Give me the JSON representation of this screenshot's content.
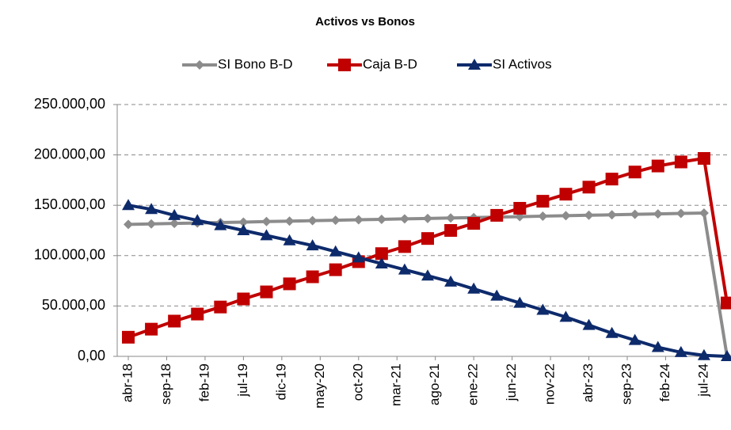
{
  "chart_data": {
    "type": "line",
    "title": "Activos vs Bonos",
    "x": [
      "2018-04",
      "2018-07",
      "2018-10",
      "2019-01",
      "2019-04",
      "2019-07",
      "2019-10",
      "2020-01",
      "2020-04",
      "2020-07",
      "2020-10",
      "2021-01",
      "2021-04",
      "2021-07",
      "2021-10",
      "2022-01",
      "2022-04",
      "2022-07",
      "2022-10",
      "2023-01",
      "2023-04",
      "2023-07",
      "2023-10",
      "2024-01",
      "2024-04",
      "2024-07",
      "2024-10"
    ],
    "xlim": [
      "2018-04",
      "2024-10"
    ],
    "xticks": [
      {
        "value": "2018-04",
        "label": "abr-18"
      },
      {
        "value": "2018-09",
        "label": "sep-18"
      },
      {
        "value": "2019-02",
        "label": "feb-19"
      },
      {
        "value": "2019-07",
        "label": "jul-19"
      },
      {
        "value": "2019-12",
        "label": "dic-19"
      },
      {
        "value": "2020-05",
        "label": "may-20"
      },
      {
        "value": "2020-10",
        "label": "oct-20"
      },
      {
        "value": "2021-03",
        "label": "mar-21"
      },
      {
        "value": "2021-08",
        "label": "ago-21"
      },
      {
        "value": "2022-01",
        "label": "ene-22"
      },
      {
        "value": "2022-06",
        "label": "jun-22"
      },
      {
        "value": "2022-11",
        "label": "nov-22"
      },
      {
        "value": "2023-04",
        "label": "abr-23"
      },
      {
        "value": "2023-09",
        "label": "sep-23"
      },
      {
        "value": "2024-02",
        "label": "feb-24"
      },
      {
        "value": "2024-07",
        "label": "jul-24"
      }
    ],
    "ylim": [
      0,
      250000
    ],
    "yticks": [
      {
        "value": 0,
        "label": "0,00"
      },
      {
        "value": 50000,
        "label": "50.000,00"
      },
      {
        "value": 100000,
        "label": "100.000,00"
      },
      {
        "value": 150000,
        "label": "150.000,00"
      },
      {
        "value": 200000,
        "label": "200.000,00"
      },
      {
        "value": 250000,
        "label": "250.000,00"
      }
    ],
    "grid": true,
    "legend": "top",
    "series": [
      {
        "name": "SI Bono B-D",
        "color": "#8c8c8c",
        "marker": "diamond",
        "values": [
          131000,
          131500,
          132000,
          132400,
          132900,
          133300,
          133800,
          134200,
          134700,
          135100,
          135600,
          136000,
          136500,
          136900,
          137400,
          137800,
          138300,
          138700,
          139200,
          139600,
          140100,
          140500,
          141000,
          141400,
          141900,
          142300,
          0
        ]
      },
      {
        "name": "Caja B-D",
        "color": "#c00000",
        "marker": "square",
        "values": [
          19000,
          27000,
          35000,
          42000,
          49000,
          57000,
          64000,
          72000,
          79000,
          86000,
          94000,
          102000,
          109000,
          117000,
          125000,
          132000,
          140000,
          147000,
          154000,
          161000,
          168000,
          176000,
          183000,
          189000,
          193000,
          196500,
          53000
        ]
      },
      {
        "name": "SI Activos",
        "color": "#0d2a6b",
        "marker": "triangle",
        "values": [
          150000,
          146000,
          140000,
          135000,
          130000,
          125000,
          120000,
          115000,
          110000,
          104000,
          98000,
          92000,
          86000,
          80000,
          74000,
          67000,
          60000,
          53000,
          46000,
          39000,
          31000,
          23000,
          16000,
          9000,
          4000,
          1000,
          0
        ]
      }
    ]
  }
}
